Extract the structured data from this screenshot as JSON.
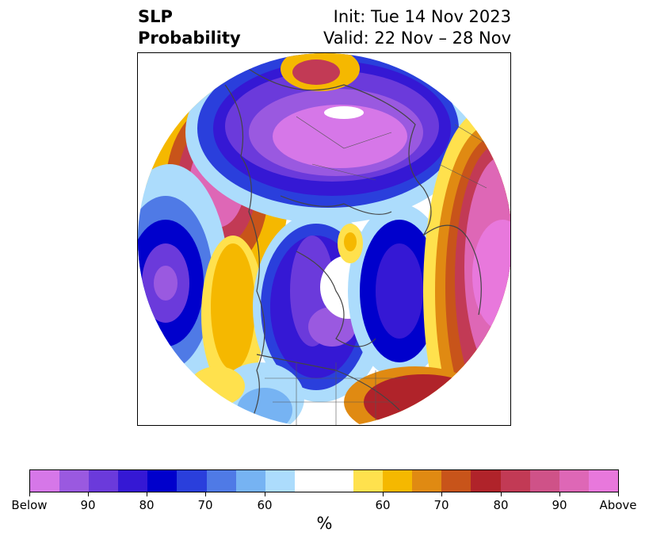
{
  "title": {
    "left_line1": "SLP",
    "left_line2": "Probability",
    "right_line1": "Init: Tue 14 Nov 2023",
    "right_line2": "Valid: 22 Nov – 28 Nov"
  },
  "colorbar": {
    "unit": "%",
    "colors": [
      "#d677e8",
      "#9a59e0",
      "#6b3adb",
      "#3518d4",
      "#0000cc",
      "#2a3fdc",
      "#4f7ae6",
      "#76b3f3",
      "#acdcfc",
      "#ffffff",
      "#ffe14d",
      "#f5b800",
      "#e08a12",
      "#c8541a",
      "#b0232a",
      "#c23a55",
      "#cf5288",
      "#de67b6",
      "#e878dc"
    ],
    "tick_labels": [
      "Below",
      "90",
      "80",
      "70",
      "60",
      "60",
      "70",
      "80",
      "90",
      "Above"
    ]
  },
  "map": {
    "projection": "north-polar-stereographic",
    "regions": [
      {
        "name": "below-normal-eurasia",
        "category": "Below 90"
      },
      {
        "name": "above-normal-west-pacific",
        "category": "90"
      },
      {
        "name": "below-normal-north-pacific",
        "category": "90"
      },
      {
        "name": "below-normal-canada",
        "category": "90"
      },
      {
        "name": "below-normal-greenland-west",
        "category": "80"
      },
      {
        "name": "above-normal-north-atlantic",
        "category": "Above 90"
      },
      {
        "name": "above-normal-southeast-us",
        "category": "80"
      }
    ]
  }
}
